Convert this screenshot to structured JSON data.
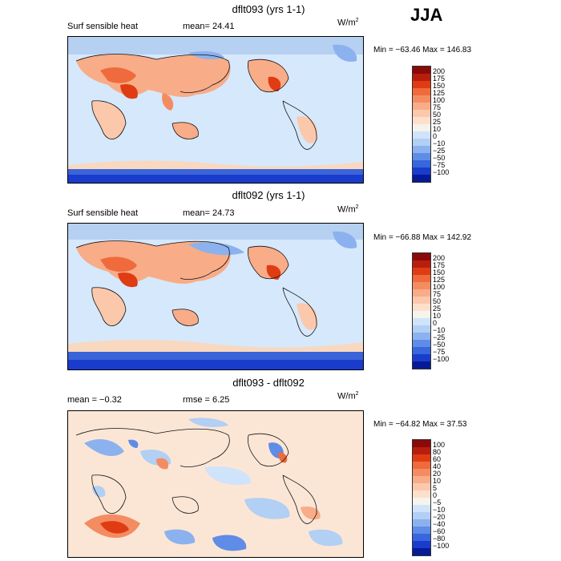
{
  "season": "JJA",
  "panels": [
    {
      "title": "dflt093 (yrs 1-1)",
      "left_label": "Surf sensible heat",
      "stat1": "mean=  24.41",
      "stat2": "",
      "units": "W/m",
      "units_exp": "2",
      "minmax": "Min = −63.46 Max = 146.83",
      "colorbar": {
        "labels": [
          "200",
          "175",
          "150",
          "125",
          "100",
          "75",
          "50",
          "25",
          "10",
          "0",
          "−10",
          "−25",
          "−50",
          "−75",
          "−100"
        ],
        "colors": [
          "#8a0a0a",
          "#b81e0e",
          "#e03c14",
          "#ef6a3c",
          "#f48c62",
          "#f8ac88",
          "#fbc8ac",
          "#fde0cc",
          "#f6f2ec",
          "#cfe4fa",
          "#b2cff4",
          "#8bb2ee",
          "#5f8ce6",
          "#3866dc",
          "#1a3ccc",
          "#061a96"
        ]
      }
    },
    {
      "title": "dflt092 (yrs 1-1)",
      "left_label": "Surf sensible heat",
      "stat1": "mean=  24.73",
      "stat2": "",
      "units": "W/m",
      "units_exp": "2",
      "minmax": "Min = −66.88 Max = 142.92",
      "colorbar": {
        "labels": [
          "200",
          "175",
          "150",
          "125",
          "100",
          "75",
          "50",
          "25",
          "10",
          "0",
          "−10",
          "−25",
          "−50",
          "−75",
          "−100"
        ],
        "colors": [
          "#8a0a0a",
          "#b81e0e",
          "#e03c14",
          "#ef6a3c",
          "#f48c62",
          "#f8ac88",
          "#fbc8ac",
          "#fde0cc",
          "#f6f2ec",
          "#cfe4fa",
          "#b2cff4",
          "#8bb2ee",
          "#5f8ce6",
          "#3866dc",
          "#1a3ccc",
          "#061a96"
        ]
      }
    },
    {
      "title": "dflt093 - dflt092",
      "left_label": "mean =   −0.32",
      "stat1": "rmse =    6.25",
      "stat2": "",
      "units": "W/m",
      "units_exp": "2",
      "minmax": "Min = −64.82 Max =  37.53",
      "colorbar": {
        "labels": [
          "100",
          "80",
          "60",
          "40",
          "20",
          "10",
          "5",
          "0",
          "−5",
          "−10",
          "−20",
          "−40",
          "−60",
          "−80",
          "−100"
        ],
        "colors": [
          "#8a0a0a",
          "#b81e0e",
          "#e03c14",
          "#ef6a3c",
          "#f48c62",
          "#f8ac88",
          "#fbc8ac",
          "#fde0cc",
          "#f6f2ec",
          "#cfe4fa",
          "#b2cff4",
          "#8bb2ee",
          "#5f8ce6",
          "#3866dc",
          "#1a3ccc",
          "#061a96"
        ]
      }
    }
  ]
}
